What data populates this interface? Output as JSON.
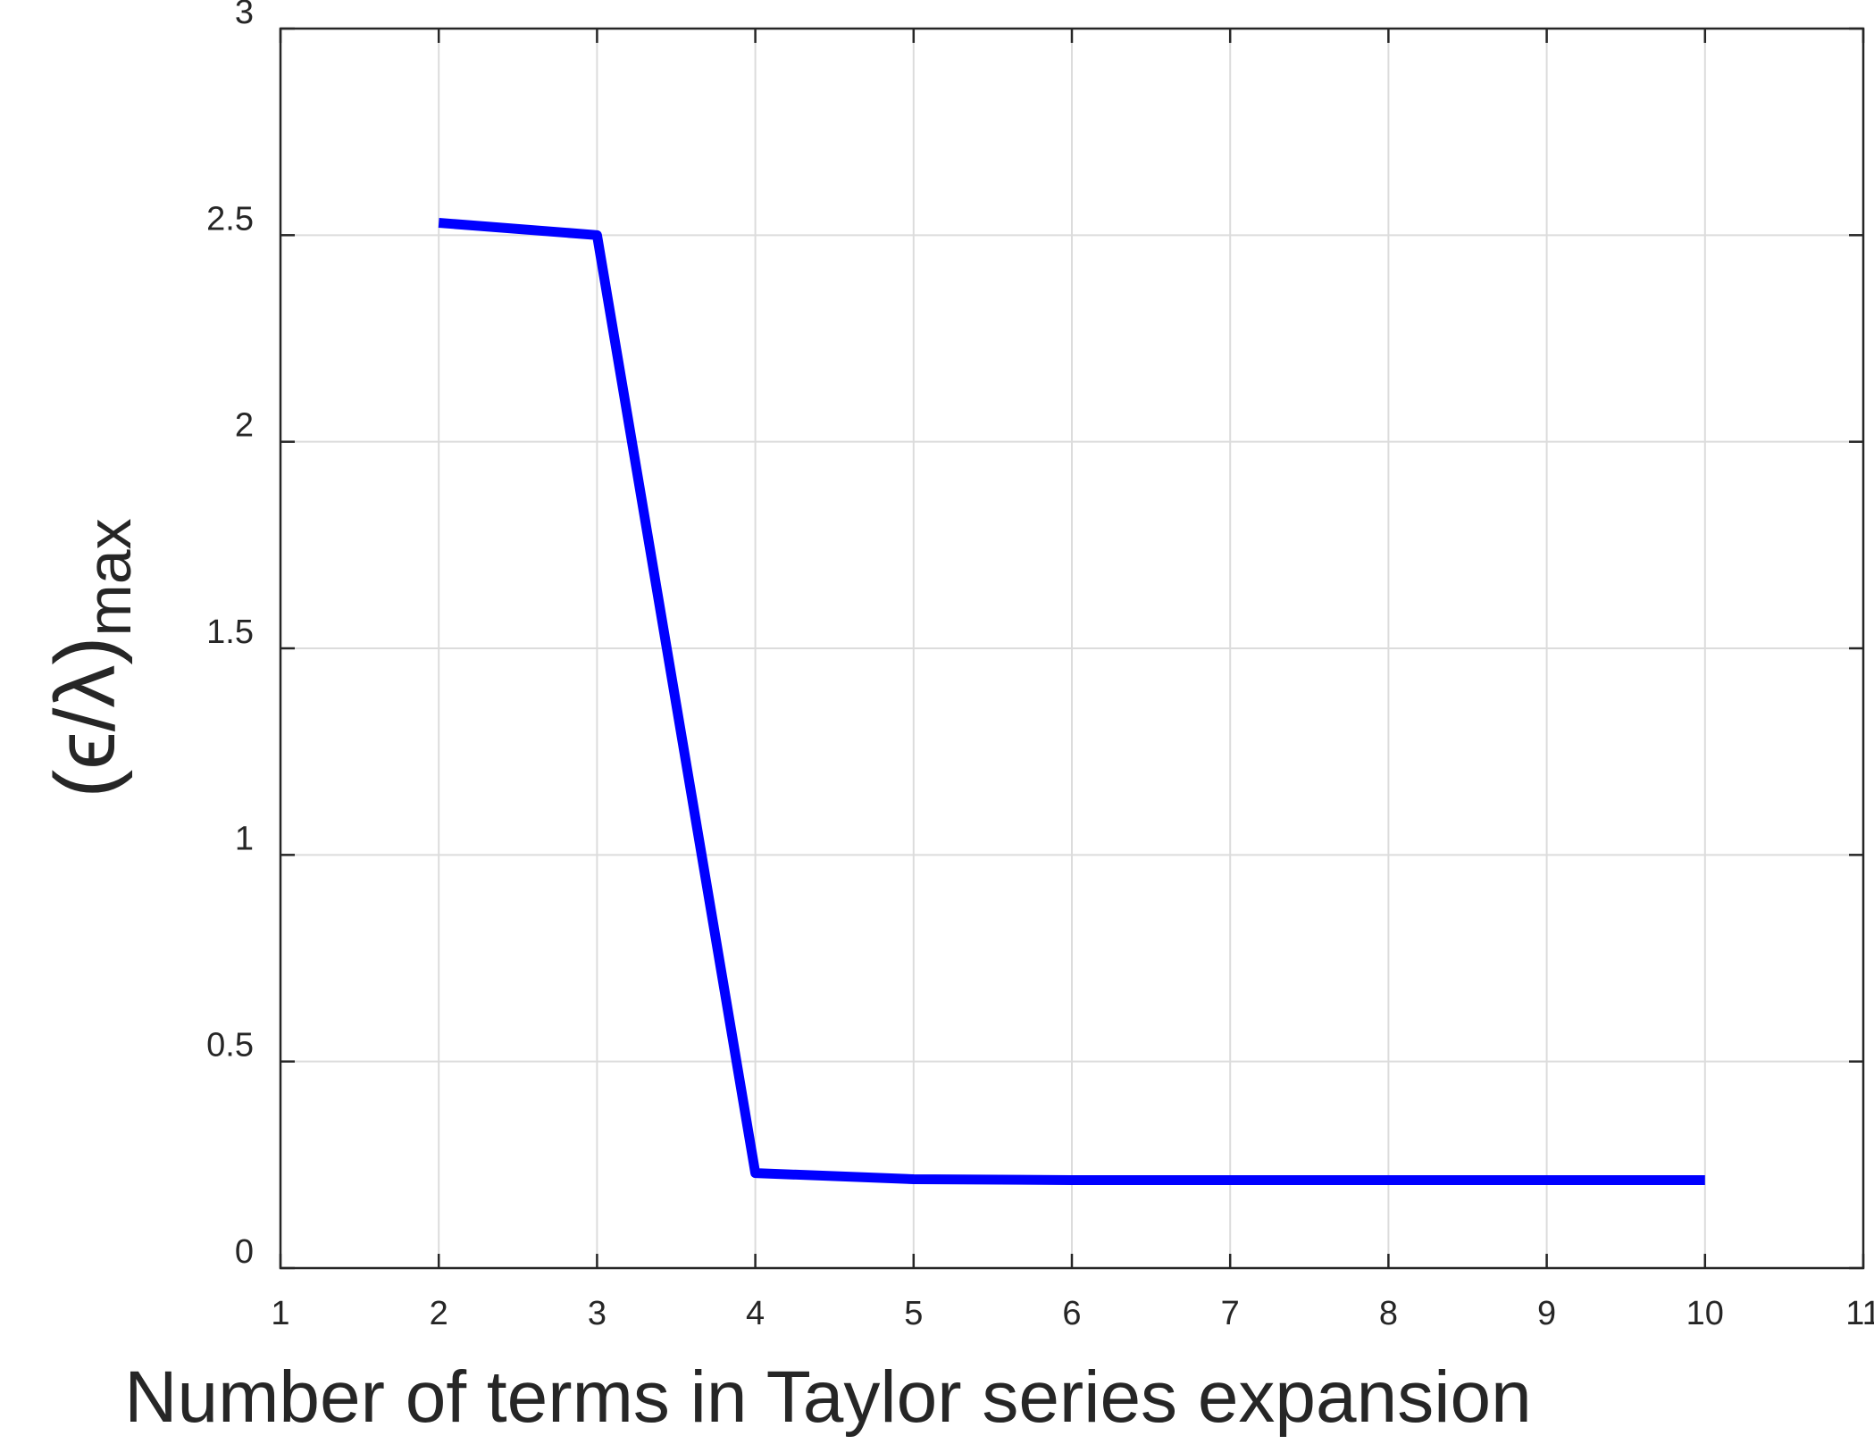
{
  "chart_data": {
    "type": "line",
    "xlabel": "Number of terms in Taylor series expansion",
    "ylabel": "(ϵ/λ)",
    "ylabel_subscript": "max",
    "xlim": [
      1,
      11
    ],
    "ylim": [
      0,
      3
    ],
    "x_ticks": [
      "1",
      "2",
      "3",
      "4",
      "5",
      "6",
      "7",
      "8",
      "9",
      "10",
      "11"
    ],
    "y_ticks": [
      "0",
      "0.5",
      "1",
      "1.5",
      "2",
      "2.5",
      "3"
    ],
    "grid": true,
    "series": [
      {
        "color": "#0000ff",
        "x": [
          2,
          3,
          4,
          5,
          6,
          7,
          8,
          9,
          10
        ],
        "values": [
          2.53,
          2.5,
          0.23,
          0.215,
          0.213,
          0.213,
          0.213,
          0.213,
          0.213
        ]
      }
    ]
  }
}
